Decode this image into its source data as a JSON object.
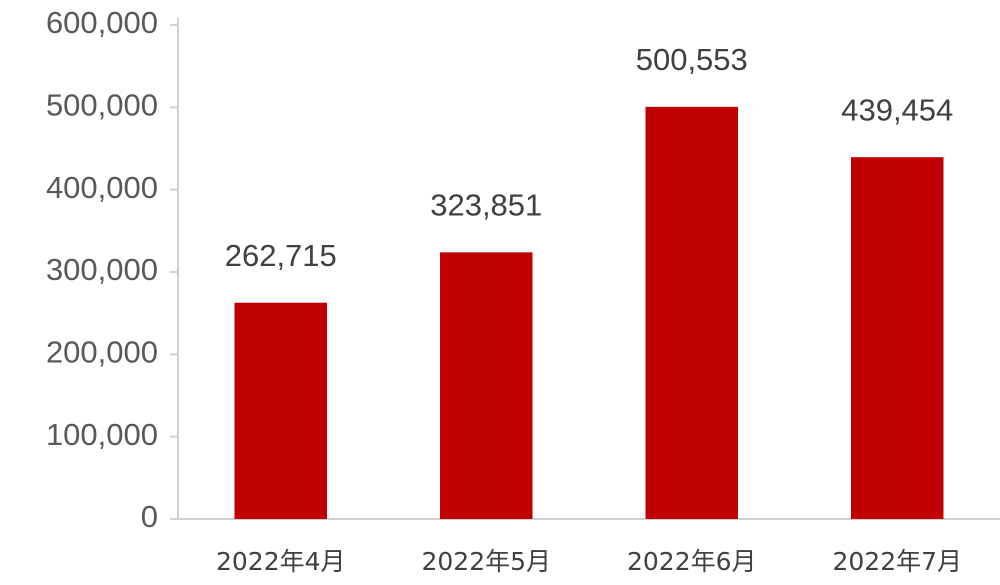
{
  "chart_data": {
    "type": "bar",
    "categories": [
      "2022年4月",
      "2022年5月",
      "2022年6月",
      "2022年7月"
    ],
    "values": [
      262715,
      323851,
      500553,
      439454
    ],
    "value_labels": [
      "262,715",
      "323,851",
      "500,553",
      "439,454"
    ],
    "color": "#c00000",
    "ylim": [
      0,
      600000
    ],
    "yticks": [
      0,
      {
        "value": 100000,
        "label": "100,000"
      },
      {
        "value": 200000,
        "label": "200,000"
      },
      {
        "value": 300000,
        "label": "300,000"
      },
      {
        "value": 400000,
        "label": "400,000"
      },
      {
        "value": 500000,
        "label": "500,000"
      },
      {
        "value": 600000,
        "label": "600,000"
      }
    ],
    "grid": false
  }
}
